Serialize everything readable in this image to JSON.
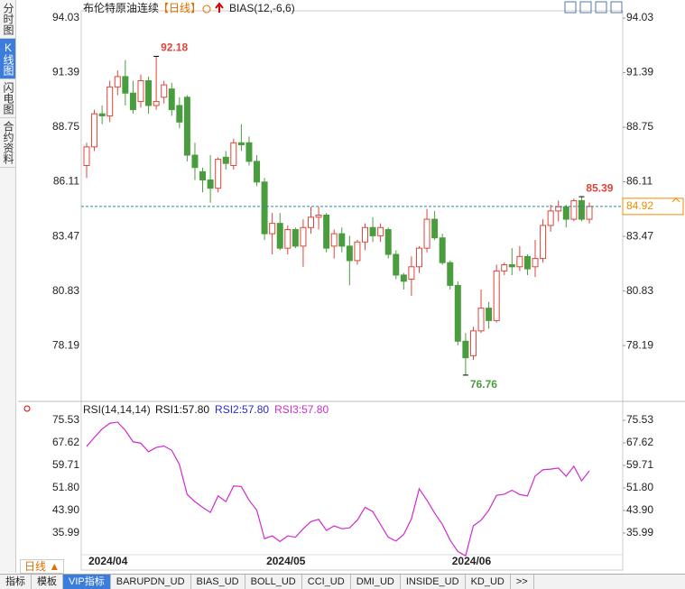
{
  "tabs": [
    "分时图",
    "K线图",
    "闪电图",
    "合约资料"
  ],
  "chart_data": {
    "type": "candlestick",
    "title": "布伦特原油连续",
    "period": "【日线】",
    "indicator": "BIAS(12,-6,6)",
    "categories": [
      "2024/04",
      null,
      null,
      null,
      null,
      null,
      null,
      null,
      null,
      null,
      null,
      null,
      null,
      null,
      null,
      null,
      null,
      null,
      null,
      null,
      null,
      null,
      null,
      "2024/05",
      null,
      null,
      null,
      null,
      null,
      null,
      null,
      null,
      null,
      null,
      null,
      null,
      null,
      null,
      null,
      null,
      null,
      null,
      null,
      null,
      null,
      null,
      null,
      "2024/06",
      null,
      null,
      null,
      null,
      null,
      null,
      null,
      null,
      null,
      null,
      null,
      null,
      null,
      null,
      null,
      null,
      null,
      null
    ],
    "open": [
      86.9,
      87.8,
      89.4,
      89.3,
      90.7,
      91.2,
      90.4,
      90.0,
      91.0,
      89.8,
      90.2,
      90.6,
      89.8,
      90.2,
      87.4,
      86.6,
      86.2,
      85.8,
      87.3,
      86.9,
      88.0,
      88.0,
      87.1,
      86.1,
      83.6,
      84.1,
      82.9,
      83.8,
      83.0,
      83.9,
      84.4,
      84.5,
      83.0,
      83.6,
      83.0,
      82.3,
      83.2,
      83.9,
      83.5,
      83.8,
      82.6,
      81.6,
      81.4,
      82.0,
      82.9,
      84.3,
      83.4,
      82.2,
      81.1,
      78.4,
      77.7,
      78.9,
      80.0,
      79.4,
      81.8,
      82.1,
      82.0,
      82.5,
      82.0,
      82.4,
      84.0,
      84.7,
      84.9,
      84.3,
      85.2,
      84.3
    ],
    "high": [
      88.0,
      89.6,
      89.8,
      91.0,
      91.5,
      92.0,
      91.0,
      91.3,
      91.2,
      92.18,
      91.0,
      90.9,
      90.2,
      90.3,
      88.0,
      86.8,
      87.4,
      87.3,
      87.6,
      88.2,
      88.9,
      88.3,
      87.4,
      86.3,
      84.6,
      84.6,
      84.0,
      83.9,
      84.3,
      84.9,
      84.9,
      84.6,
      83.8,
      83.9,
      83.5,
      83.3,
      84.1,
      84.4,
      84.1,
      83.9,
      82.8,
      81.7,
      82.5,
      83.0,
      84.8,
      84.7,
      83.6,
      82.3,
      81.3,
      78.8,
      79.1,
      80.9,
      80.3,
      82.1,
      82.2,
      82.9,
      83.0,
      82.6,
      83.3,
      84.3,
      85.0,
      85.2,
      85.0,
      85.3,
      85.39,
      85.1
    ],
    "low": [
      86.3,
      87.6,
      88.9,
      89.0,
      90.3,
      89.8,
      89.4,
      89.7,
      89.4,
      89.6,
      89.9,
      89.3,
      88.7,
      87.1,
      86.2,
      85.6,
      85.1,
      85.6,
      86.7,
      86.7,
      87.6,
      86.9,
      85.9,
      83.3,
      82.6,
      82.8,
      82.6,
      82.9,
      82.0,
      83.6,
      83.8,
      82.7,
      82.4,
      82.7,
      81.1,
      82.1,
      82.8,
      83.2,
      83.2,
      82.4,
      81.4,
      80.9,
      80.6,
      81.7,
      82.7,
      83.3,
      82.1,
      80.9,
      78.2,
      76.76,
      77.5,
      78.8,
      79.0,
      79.3,
      81.6,
      81.6,
      81.8,
      81.6,
      81.5,
      82.2,
      83.7,
      84.2,
      83.9,
      84.2,
      84.2,
      84.1
    ],
    "close": [
      87.8,
      89.4,
      89.3,
      90.7,
      91.2,
      90.4,
      89.6,
      91.0,
      89.8,
      90.0,
      90.8,
      89.6,
      89.0,
      87.4,
      86.8,
      86.2,
      85.8,
      87.2,
      87.0,
      88.0,
      87.9,
      87.1,
      86.1,
      83.6,
      84.1,
      82.9,
      83.8,
      83.0,
      83.9,
      84.4,
      84.5,
      82.9,
      83.6,
      83.0,
      82.3,
      83.2,
      83.9,
      83.5,
      83.9,
      82.6,
      81.6,
      81.3,
      82.0,
      82.9,
      84.3,
      83.4,
      82.2,
      81.1,
      78.4,
      77.6,
      78.9,
      80.0,
      79.4,
      81.8,
      82.1,
      82.0,
      82.5,
      81.9,
      82.4,
      84.0,
      84.7,
      84.9,
      84.3,
      85.2,
      84.3,
      84.92
    ],
    "up_color": "#e0443a",
    "down_color": "#4a9d3f",
    "last_color": "#f08c00",
    "ylim": [
      75.49,
      94.25
    ],
    "yticks": [
      94.03,
      91.39,
      88.75,
      86.11,
      83.47,
      80.83,
      78.19
    ],
    "rsi": {
      "title": "RSI(14,14,14)",
      "legend": [
        {
          "name": "RSI1:57.80",
          "color": "#111111"
        },
        {
          "name": "RSI2:57.80",
          "color": "#2a2ad0"
        },
        {
          "name": "RSI3:57.80",
          "color": "#d02ad0"
        }
      ],
      "color": "#d02ad0",
      "values": [
        66.4,
        69.5,
        72.5,
        74.5,
        74.9,
        72.0,
        68.0,
        67.5,
        64.5,
        66.0,
        66.5,
        65.0,
        60.0,
        49.5,
        47.0,
        45.0,
        43.2,
        49.0,
        47.0,
        52.5,
        52.3,
        47.5,
        44.0,
        34.0,
        35.0,
        33.0,
        35.0,
        34.5,
        37.5,
        40.0,
        40.8,
        36.9,
        38.5,
        37.5,
        37.8,
        40.5,
        45.0,
        43.5,
        39.0,
        34.5,
        33.2,
        35.5,
        41.0,
        51.5,
        47.5,
        43.0,
        39.0,
        33.5,
        29.5,
        28.0,
        38.5,
        40.5,
        44.0,
        49.2,
        49.6,
        51.0,
        49.5,
        49.0,
        56.0,
        58.2,
        58.4,
        58.8,
        55.9,
        59.4,
        54.3,
        57.8
      ],
      "ylim": [
        26.8,
        79.0
      ],
      "yticks": [
        75.53,
        67.62,
        59.71,
        {
          "value": 51.8,
          "label": "51.80"
        },
        {
          "value": 43.9,
          "label": "43.90"
        },
        35.99
      ]
    }
  },
  "footer": {
    "period_button": "日线 ▲",
    "tabs": [
      "指标",
      "模板",
      "VIP指标",
      "BARUPDN_UD",
      "BIAS_UD",
      "BOLL_UD",
      "CCI_UD",
      "DMI_UD",
      "INSIDE_UD",
      "KD_UD",
      ">>"
    ],
    "selected_tab": 2
  }
}
